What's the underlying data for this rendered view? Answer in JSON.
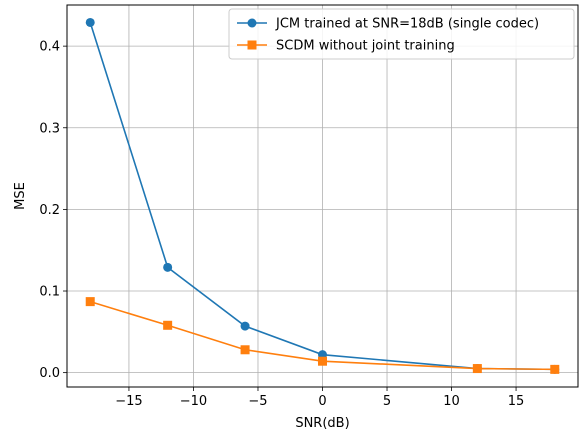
{
  "chart_data": {
    "type": "line",
    "title": "",
    "xlabel": "SNR(dB)",
    "ylabel": "MSE",
    "xlim": [
      -19.8,
      19.8
    ],
    "ylim": [
      -0.0176,
      0.4504
    ],
    "xticks": [
      -15,
      -10,
      -5,
      0,
      5,
      10,
      15
    ],
    "xtick_labels": [
      "−15",
      "−10",
      "−5",
      "0",
      "5",
      "10",
      "15"
    ],
    "yticks": [
      0.0,
      0.1,
      0.2,
      0.3,
      0.4
    ],
    "ytick_labels": [
      "0.0",
      "0.1",
      "0.2",
      "0.3",
      "0.4"
    ],
    "grid": true,
    "legend_position": "top-right",
    "series": [
      {
        "name": "JCM trained at SNR=18dB (single codec)",
        "color": "#1f77b4",
        "marker": "circle",
        "x": [
          -18,
          -12,
          -6,
          0,
          12,
          18
        ],
        "y": [
          0.429,
          0.129,
          0.057,
          0.022,
          0.005,
          0.004
        ]
      },
      {
        "name": "SCDM without joint training",
        "color": "#ff7f0e",
        "marker": "square",
        "x": [
          -18,
          -12,
          -6,
          0,
          12,
          18
        ],
        "y": [
          0.087,
          0.058,
          0.028,
          0.014,
          0.005,
          0.004
        ]
      }
    ]
  }
}
